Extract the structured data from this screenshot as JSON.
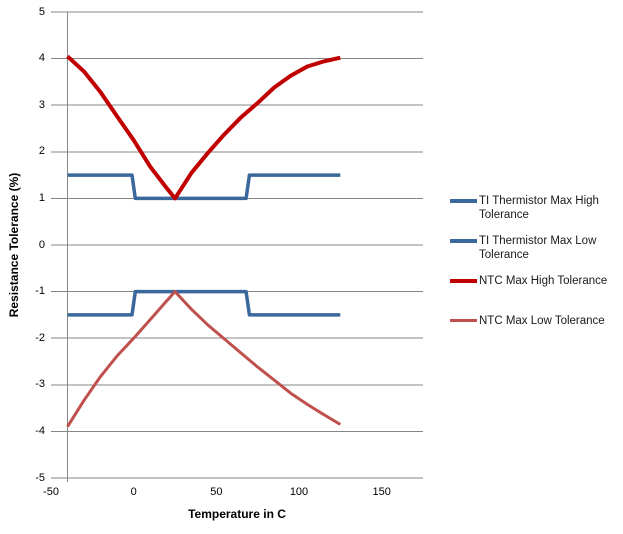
{
  "figure": {
    "background": "#FFFFFF",
    "colors": {
      "grid": "#878787",
      "axis": "#878787",
      "text": "#000000",
      "ti_blue": "#3B689C",
      "ntc_high_red": "#C00000",
      "ntc_low_red": "#C0504D"
    }
  },
  "chart_data": {
    "type": "line",
    "title": "",
    "xlabel": "Temperature in C",
    "ylabel": "Resistance Tolerance (%)",
    "xlim": [
      -50,
      175
    ],
    "ylim": [
      -5,
      5
    ],
    "x_ticks": [
      -50,
      0,
      50,
      100,
      150
    ],
    "y_ticks": [
      5,
      4,
      3,
      2,
      1,
      0,
      -1,
      -2,
      -3,
      -4,
      -5
    ],
    "grid": "horizontal-only",
    "y_axis_line_at_x": -40,
    "legend_position": "right",
    "series": [
      {
        "name": "TI Thermistor Max High Tolerance",
        "color": "#3B689C",
        "line_width": 3.5,
        "points": [
          [
            -40,
            1.5
          ],
          [
            -1,
            1.5
          ],
          [
            1,
            1.0
          ],
          [
            68,
            1.0
          ],
          [
            70,
            1.5
          ],
          [
            125,
            1.5
          ]
        ]
      },
      {
        "name": "TI Thermistor Max Low Tolerance",
        "color": "#3B689C",
        "line_width": 3.5,
        "points": [
          [
            -40,
            -1.5
          ],
          [
            -1,
            -1.5
          ],
          [
            1,
            -1.0
          ],
          [
            68,
            -1.0
          ],
          [
            70,
            -1.5
          ],
          [
            125,
            -1.5
          ]
        ]
      },
      {
        "name": "NTC Max High Tolerance",
        "color": "#C00000",
        "line_width": 4,
        "points": [
          [
            -40,
            4.05
          ],
          [
            -30,
            3.72
          ],
          [
            -20,
            3.28
          ],
          [
            -10,
            2.76
          ],
          [
            0,
            2.25
          ],
          [
            10,
            1.68
          ],
          [
            20,
            1.22
          ],
          [
            25,
            1.0
          ],
          [
            35,
            1.55
          ],
          [
            45,
            1.98
          ],
          [
            55,
            2.38
          ],
          [
            65,
            2.74
          ],
          [
            75,
            3.05
          ],
          [
            85,
            3.38
          ],
          [
            95,
            3.63
          ],
          [
            105,
            3.83
          ],
          [
            115,
            3.94
          ],
          [
            125,
            4.02
          ]
        ]
      },
      {
        "name": "NTC Max Low Tolerance",
        "color": "#C0504D",
        "line_width": 3,
        "points": [
          [
            -40,
            -3.9
          ],
          [
            -30,
            -3.33
          ],
          [
            -20,
            -2.82
          ],
          [
            -10,
            -2.38
          ],
          [
            0,
            -2.0
          ],
          [
            10,
            -1.6
          ],
          [
            20,
            -1.2
          ],
          [
            25,
            -1.0
          ],
          [
            35,
            -1.38
          ],
          [
            45,
            -1.72
          ],
          [
            55,
            -2.02
          ],
          [
            65,
            -2.32
          ],
          [
            75,
            -2.62
          ],
          [
            85,
            -2.9
          ],
          [
            95,
            -3.18
          ],
          [
            105,
            -3.42
          ],
          [
            115,
            -3.64
          ],
          [
            125,
            -3.85
          ]
        ]
      }
    ]
  }
}
